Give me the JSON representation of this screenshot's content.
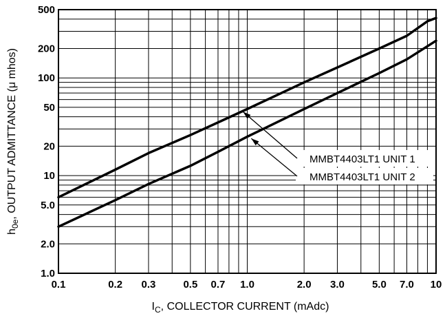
{
  "chart_data": {
    "type": "line",
    "xscale": "log",
    "yscale": "log",
    "xlim": [
      0.1,
      10
    ],
    "ylim": [
      1,
      500
    ],
    "grid": true,
    "xlabel": {
      "main": "I",
      "sub": "C",
      "rest": ", COLLECTOR CURRENT (mAdc)"
    },
    "ylabel": {
      "main": "h",
      "sub": "0e",
      "rest": ", OUTPUT ADMITTANCE (μ mhos)"
    },
    "xticks": [
      {
        "value": 0.1,
        "label": "0.1"
      },
      {
        "value": 0.2,
        "label": "0.2"
      },
      {
        "value": 0.3,
        "label": "0.3"
      },
      {
        "value": 0.5,
        "label": "0.5"
      },
      {
        "value": 0.7,
        "label": "0.7"
      },
      {
        "value": 1.0,
        "label": "1.0"
      },
      {
        "value": 2.0,
        "label": "2.0"
      },
      {
        "value": 3.0,
        "label": "3.0"
      },
      {
        "value": 5.0,
        "label": "5.0"
      },
      {
        "value": 7.0,
        "label": "7.0"
      },
      {
        "value": 10,
        "label": "10"
      }
    ],
    "yticks": [
      {
        "value": 1.0,
        "label": "1.0"
      },
      {
        "value": 2.0,
        "label": "2.0"
      },
      {
        "value": 5.0,
        "label": "5.0"
      },
      {
        "value": 10,
        "label": "10"
      },
      {
        "value": 20,
        "label": "20"
      },
      {
        "value": 50,
        "label": "50"
      },
      {
        "value": 100,
        "label": "100"
      },
      {
        "value": 200,
        "label": "200"
      },
      {
        "value": 500,
        "label": "500"
      }
    ],
    "series": [
      {
        "name": "MMBT4403LT1 UNIT 1",
        "x": [
          0.1,
          0.2,
          0.3,
          0.5,
          0.7,
          1.0,
          2.0,
          3.0,
          5.0,
          7.0,
          9.0,
          10
        ],
        "y": [
          6,
          11.5,
          17,
          26,
          35,
          48,
          90,
          128,
          200,
          270,
          380,
          410
        ]
      },
      {
        "name": "MMBT4403LT1 UNIT 2",
        "x": [
          0.1,
          0.2,
          0.3,
          0.5,
          0.7,
          1.0,
          2.0,
          3.0,
          5.0,
          7.0,
          10
        ],
        "y": [
          3,
          5.6,
          8.2,
          12.6,
          17.5,
          25,
          48,
          70,
          112,
          155,
          240
        ]
      }
    ],
    "annotations": [
      {
        "series": 0,
        "text": "MMBT4403LT1 UNIT 1",
        "arrow_x": 0.95,
        "arrow_y": 45
      },
      {
        "series": 1,
        "text": "MMBT4403LT1 UNIT 2",
        "arrow_x": 1.05,
        "arrow_y": 24
      }
    ]
  }
}
